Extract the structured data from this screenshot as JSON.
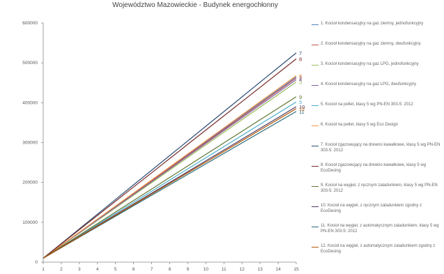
{
  "chart_data": {
    "type": "line",
    "title": "Województwo Mazowieckie - Budynek energochłonny",
    "x": [
      1,
      2,
      3,
      4,
      5,
      6,
      7,
      8,
      9,
      10,
      11,
      12,
      13,
      14,
      15
    ],
    "ylim": [
      0,
      600000
    ],
    "yticks": [
      0,
      100000,
      200000,
      300000,
      400000,
      500000,
      600000
    ],
    "grid": false,
    "legend_position": "right",
    "series": [
      {
        "name": "1. Kocioł kondensacyjny na gaz ziemny, jednofunkcyjny",
        "start": 10000,
        "end": 465000,
        "end_label": "1",
        "color": "#4f81bd"
      },
      {
        "name": "2. Kocioł kondensacyjny na gaz ziemny, dwufunkcyjny",
        "start": 10000,
        "end": 462000,
        "end_label": "2",
        "color": "#c0504d"
      },
      {
        "name": "3. Kocioł kondensacyjny na gaz LPG, jednofunkcyjny",
        "start": 10000,
        "end": 452000,
        "end_label": "3",
        "color": "#9bbb59"
      },
      {
        "name": "4. Kocioł kondensacyjny na gaz LPG, dwufunkcyjny",
        "start": 10000,
        "end": 458000,
        "end_label": "4",
        "color": "#8064a2"
      },
      {
        "name": "5. Kocioł na pellet, klasy 5 wg PN-EN 303-5: 2012",
        "start": 10000,
        "end": 402000,
        "end_label": "5",
        "color": "#4bacc6"
      },
      {
        "name": "6. Kocioł na pellet, klasy 5 wg Eco Design",
        "start": 10000,
        "end": 468000,
        "end_label": "6",
        "color": "#f79646"
      },
      {
        "name": "7. Kocioł zgazowujący na drewno kawałkowe, klasy 5 wg PN-EN 303-5: 2012",
        "start": 10000,
        "end": 525000,
        "end_label": "7",
        "color": "#2c4d75"
      },
      {
        "name": "8. Kocioł zgazowujący na drewno kawałkowe, klasy 5 wg EcoDesing",
        "start": 10000,
        "end": 510000,
        "end_label": "8",
        "color": "#772c2a"
      },
      {
        "name": "9. Kocioł na węgiel, z ręcznym zaladunkiem, klasy 5 wg PN-EN 303-5: 2012",
        "start": 10000,
        "end": 415000,
        "end_label": "9",
        "color": "#5f7530"
      },
      {
        "name": "10. Kocioł na węgiel, z ręcznym zaladunkiem zgodny z EcoDesing",
        "start": 10000,
        "end": 390000,
        "end_label": "10",
        "color": "#4d3b62"
      },
      {
        "name": "11. Kocioł na węgiel, z automatycznym zaladunkiem, klasy 5 wg PN-EN 303-5: 2012",
        "start": 10000,
        "end": 378000,
        "end_label": "11",
        "color": "#276a7c"
      },
      {
        "name": "12. Kocioł na węgiel, z automatycznym zaladunkiem zgodny z EcoDesing",
        "start": 10000,
        "end": 385000,
        "end_label": "12",
        "color": "#b65708"
      }
    ]
  }
}
